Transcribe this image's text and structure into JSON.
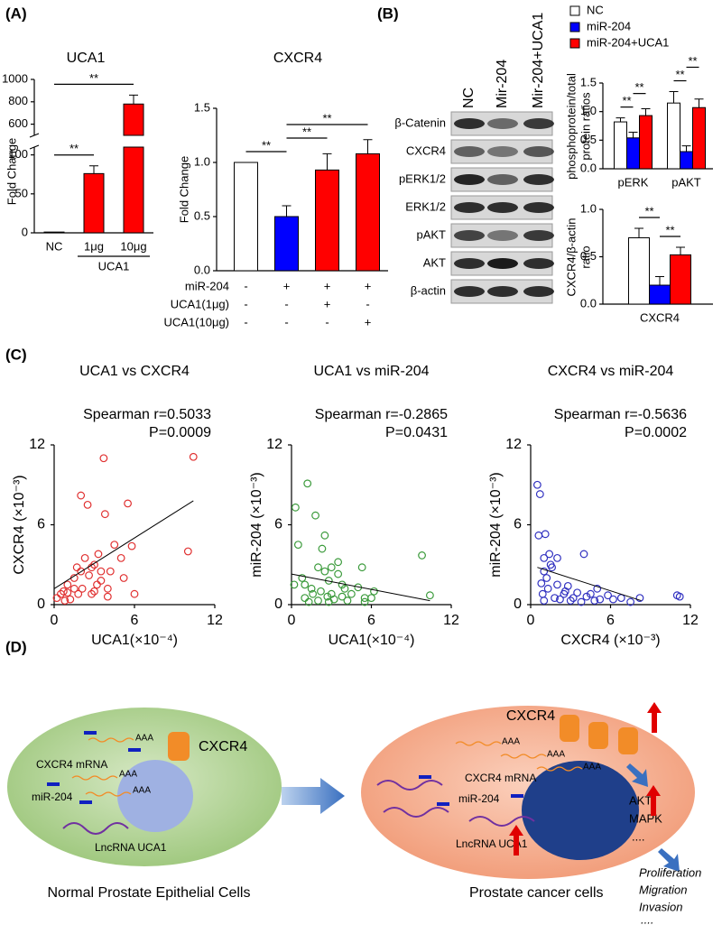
{
  "panels": [
    "(A)",
    "(B)",
    "(C)",
    "(D)"
  ],
  "blot": {
    "columns": [
      "NC",
      "Mir-204",
      "Mir-204+UCA1"
    ],
    "rows": [
      "β-Catenin",
      "CXCR4",
      "pERK1/2",
      "ERK1/2",
      "pAKT",
      "AKT",
      "β-actin"
    ]
  },
  "chart_data": [
    {
      "type": "bar",
      "title": "UCA1",
      "ylabel": "Fold Change",
      "xlabel": "UCA1",
      "categories": [
        "NC",
        "1μg",
        "10μg"
      ],
      "values": [
        1,
        76,
        780
      ],
      "errors": [
        0,
        10,
        80
      ],
      "colors": [
        "#ffffff",
        "#ff0000",
        "#ff0000"
      ],
      "ylim": [
        0,
        1000
      ],
      "ybreak": [
        110,
        500
      ],
      "yticks": [
        0,
        50,
        100,
        600,
        800,
        1000
      ],
      "significance": [
        {
          "label": "**",
          "pair": [
            0,
            1
          ]
        },
        {
          "label": "**",
          "pair": [
            0,
            2
          ]
        }
      ]
    },
    {
      "type": "bar",
      "title": "CXCR4",
      "ylabel": "Fold Change",
      "values": [
        1.0,
        0.5,
        0.93,
        1.08
      ],
      "errors": [
        0,
        0.1,
        0.15,
        0.13
      ],
      "colors": [
        "#ffffff",
        "#0000ff",
        "#ff0000",
        "#ff0000"
      ],
      "conditions": [
        {
          "name": "miR-204",
          "marks": [
            "-",
            "+",
            "+",
            "+"
          ]
        },
        {
          "name": "UCA1(1μg)",
          "marks": [
            "-",
            "-",
            "+",
            "-"
          ]
        },
        {
          "name": "UCA1(10μg)",
          "marks": [
            "-",
            "-",
            "-",
            "+"
          ]
        }
      ],
      "ylim": [
        0,
        1.5
      ],
      "yticks": [
        {
          "value": 0,
          "label": "0.0"
        },
        {
          "value": 0.5,
          "label": "0.5"
        },
        {
          "value": 1,
          "label": "1.0"
        },
        {
          "value": 1.5,
          "label": "1.5"
        }
      ],
      "significance": [
        {
          "label": "**",
          "pair": [
            0,
            1
          ]
        },
        {
          "label": "**",
          "pair": [
            1,
            2
          ]
        },
        {
          "label": "**",
          "pair": [
            1,
            3
          ]
        }
      ]
    },
    {
      "type": "bar",
      "ylabel": [
        "phosphoprotein/total",
        "protein ratios"
      ],
      "categories": [
        "pERK",
        "pAKT"
      ],
      "series": [
        {
          "name": "NC",
          "color": "#ffffff",
          "values": [
            0.82,
            1.15
          ],
          "errors": [
            0.07,
            0.2
          ]
        },
        {
          "name": "miR-204",
          "color": "#0000ff",
          "values": [
            0.54,
            0.3
          ],
          "errors": [
            0.1,
            0.1
          ]
        },
        {
          "name": "miR-204+UCA1",
          "color": "#ff0000",
          "values": [
            0.93,
            1.07
          ],
          "errors": [
            0.12,
            0.15
          ]
        }
      ],
      "ylim": [
        0,
        1.5
      ],
      "yticks": [
        {
          "value": 0,
          "label": "0.0"
        },
        {
          "value": 0.5,
          "label": "0.5"
        },
        {
          "value": 1,
          "label": "1.0"
        },
        {
          "value": 1.5,
          "label": "1.5"
        }
      ],
      "significance": [
        {
          "label": "**",
          "pair": [
            0,
            1
          ]
        },
        {
          "label": "**",
          "pair": [
            1,
            2
          ]
        },
        {
          "label": "**",
          "pair": [
            3,
            4
          ]
        },
        {
          "label": "**",
          "pair": [
            4,
            5
          ]
        }
      ]
    },
    {
      "type": "bar",
      "ylabel": [
        "CXCR4/β-actin",
        "ratio"
      ],
      "categories": [
        "CXCR4"
      ],
      "series": [
        {
          "color": "#ffffff",
          "values": [
            0.7
          ],
          "errors": [
            0.1
          ]
        },
        {
          "color": "#0000ff",
          "values": [
            0.2
          ],
          "errors": [
            0.09
          ]
        },
        {
          "color": "#ff0000",
          "values": [
            0.52
          ],
          "errors": [
            0.08
          ]
        }
      ],
      "ylim": [
        0,
        1
      ],
      "yticks": [
        {
          "value": 0,
          "label": "0.0"
        },
        {
          "value": 0.5,
          "label": "0.5"
        },
        {
          "value": 1,
          "label": "1.0"
        }
      ],
      "significance": [
        {
          "label": "**",
          "pair": [
            0,
            1
          ]
        },
        {
          "label": "**",
          "pair": [
            1,
            2
          ]
        }
      ]
    },
    {
      "type": "scatter",
      "title": "UCA1 vs CXCR4",
      "annotations": [
        "Spearman r=0.5033",
        "P=0.0009"
      ],
      "xlabel": "UCA1(×10⁻⁴)",
      "ylabel": "CXCR4 (×10⁻³)",
      "color": "#e03030",
      "x": [
        0.2,
        0.5,
        0.7,
        1,
        1.2,
        1.5,
        1.8,
        2,
        2.1,
        2.3,
        2.5,
        2.6,
        2.8,
        3,
        3.2,
        3.3,
        3.5,
        3.7,
        3.8,
        4,
        4,
        4.5,
        5,
        5.2,
        5.5,
        5.8,
        6,
        2,
        1.5,
        1,
        3,
        4.2,
        10,
        10.4,
        0.8,
        2.8,
        1.7,
        3.5
      ],
      "y": [
        0.5,
        0.8,
        1,
        1.5,
        0.4,
        2,
        0.8,
        8.2,
        1.2,
        3.5,
        7.5,
        2.2,
        2.8,
        3,
        1.5,
        3.8,
        2.5,
        11,
        6.8,
        1.2,
        0.6,
        4.5,
        3.5,
        2,
        7.6,
        4.4,
        0.8,
        2.5,
        1.2,
        0.9,
        1,
        2.5,
        4,
        11.1,
        0.3,
        0.8,
        2.8,
        1.8
      ],
      "fit": {
        "x": [
          0,
          10.4
        ],
        "y": [
          1.2,
          7.8
        ]
      },
      "xlim": [
        0,
        12
      ],
      "ylim": [
        0,
        12
      ],
      "xticks": [
        0,
        6,
        12
      ],
      "yticks": [
        0,
        6,
        12
      ]
    },
    {
      "type": "scatter",
      "title": "UCA1 vs miR-204",
      "annotations": [
        "Spearman r=-0.2865",
        "P=0.0431"
      ],
      "xlabel": "UCA1(×10⁻⁴)",
      "ylabel": "miR-204 (×10⁻³)",
      "color": "#3a9a3a",
      "x": [
        0.2,
        0.3,
        0.5,
        0.8,
        1,
        1.2,
        1.3,
        1.5,
        1.6,
        1.8,
        2,
        2.2,
        2.3,
        2.5,
        2.5,
        2.7,
        2.8,
        3,
        3,
        3.2,
        3.5,
        3.5,
        3.8,
        4,
        4.2,
        4.5,
        5,
        5.3,
        5.5,
        5.5,
        6,
        6.2,
        9.8,
        10.4,
        1,
        2,
        3.8,
        2.8
      ],
      "y": [
        1.5,
        7.3,
        4.5,
        2,
        0.5,
        9.1,
        0.2,
        1.2,
        0.8,
        6.7,
        0.3,
        1,
        4.2,
        5.2,
        2.5,
        0.6,
        0.2,
        2.8,
        0.8,
        0.4,
        3.2,
        2.3,
        0.6,
        1.2,
        0.3,
        0.8,
        1.3,
        2.8,
        0.5,
        0.2,
        0.5,
        1,
        3.7,
        0.7,
        1.5,
        2.8,
        1.5,
        1.8
      ],
      "fit": {
        "x": [
          0,
          10.4
        ],
        "y": [
          2.3,
          0.3
        ]
      },
      "xlim": [
        0,
        12
      ],
      "ylim": [
        0,
        12
      ],
      "xticks": [
        0,
        6,
        12
      ],
      "yticks": [
        0,
        6,
        12
      ]
    },
    {
      "type": "scatter",
      "title": "CXCR4 vs miR-204",
      "annotations": [
        "Spearman r=-0.5636",
        "P=0.0002"
      ],
      "xlabel": "CXCR4 (×10⁻³)",
      "ylabel": "miR-204 (×10⁻³)",
      "color": "#3030c0",
      "x": [
        0.5,
        0.6,
        0.7,
        0.8,
        0.9,
        1,
        1,
        1.1,
        1.2,
        1.3,
        1.4,
        1.5,
        1.6,
        1.8,
        2,
        2,
        2.2,
        2.5,
        2.6,
        2.8,
        3,
        3.2,
        3.5,
        3.8,
        4,
        4.2,
        4.5,
        4.8,
        5,
        5.2,
        5.8,
        6.2,
        6.8,
        7.5,
        8.2,
        11,
        11.2,
        1
      ],
      "y": [
        9,
        5.2,
        8.3,
        1.6,
        0.8,
        3.5,
        2.5,
        5.3,
        2,
        1.2,
        3.8,
        3,
        2.8,
        0.5,
        3.5,
        1.5,
        0.4,
        0.8,
        1,
        1.4,
        0.3,
        0.5,
        0.9,
        0.2,
        3.8,
        0.6,
        0.8,
        0.3,
        1.2,
        0.4,
        0.7,
        0.4,
        0.5,
        0.2,
        0.5,
        0.7,
        0.6,
        0.3
      ],
      "fit": {
        "x": [
          0.5,
          8.3
        ],
        "y": [
          2.8,
          0.3
        ]
      },
      "xlim": [
        0,
        12
      ],
      "ylim": [
        0,
        12
      ],
      "xticks": [
        0,
        6,
        12
      ],
      "yticks": [
        0,
        6,
        12
      ]
    }
  ],
  "diagram": {
    "polya": "AAA",
    "left": {
      "receptor": "CXCR4",
      "mrna": "CXCR4 mRNA",
      "mirna": "miR-204",
      "lncrna": "LncRNA UCA1",
      "caption": "Normal Prostate Epithelial Cells"
    },
    "right": {
      "receptor": "CXCR4",
      "mrna": "CXCR4 mRNA",
      "mirna": "miR-204",
      "lncrna": "LncRNA UCA1",
      "pathways": [
        "AKT",
        "MAPK",
        "...."
      ],
      "caption": "Prostate cancer cells",
      "outcomes": [
        "Proliferation",
        "Migration",
        "Invasion",
        "...."
      ]
    }
  }
}
